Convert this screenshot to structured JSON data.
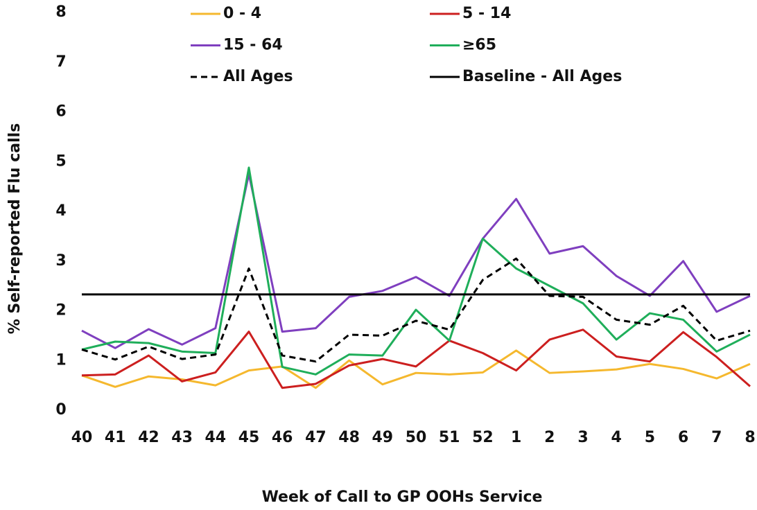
{
  "chart_data": {
    "type": "line",
    "x_label": "Week of Call to GP OOHs Service",
    "y_label": "% Self-reported Flu calls",
    "categories": [
      "40",
      "41",
      "42",
      "43",
      "44",
      "45",
      "46",
      "47",
      "48",
      "49",
      "50",
      "51",
      "52",
      "1",
      "2",
      "3",
      "4",
      "5",
      "6",
      "7",
      "8"
    ],
    "ylim": [
      0,
      8
    ],
    "yticks": [
      0,
      1,
      2,
      3,
      4,
      5,
      6,
      7,
      8
    ],
    "legend": "top",
    "series": [
      {
        "name": "0 - 4",
        "color": "#f5b82e",
        "dash": false,
        "values": [
          0.7,
          0.47,
          0.68,
          0.62,
          0.5,
          0.8,
          0.88,
          0.45,
          1.0,
          0.52,
          0.75,
          0.72,
          0.76,
          1.2,
          0.75,
          0.78,
          0.82,
          0.93,
          0.83,
          0.64,
          0.93
        ]
      },
      {
        "name": "5 - 14",
        "color": "#cc1f1f",
        "dash": false,
        "values": [
          0.7,
          0.72,
          1.1,
          0.58,
          0.76,
          1.58,
          0.45,
          0.53,
          0.9,
          1.03,
          0.88,
          1.4,
          1.15,
          0.8,
          1.42,
          1.62,
          1.08,
          0.98,
          1.57,
          1.07,
          0.48
        ]
      },
      {
        "name": "15 - 64",
        "color": "#7f3fbf",
        "dash": false,
        "values": [
          1.6,
          1.25,
          1.63,
          1.32,
          1.65,
          4.75,
          1.58,
          1.65,
          2.28,
          2.4,
          2.68,
          2.3,
          3.45,
          4.25,
          3.15,
          3.3,
          2.7,
          2.3,
          3.0,
          1.98,
          2.3
        ]
      },
      {
        "name": "≥65",
        "color": "#1fae5a",
        "dash": false,
        "values": [
          1.22,
          1.38,
          1.35,
          1.18,
          1.15,
          4.88,
          0.87,
          0.72,
          1.12,
          1.1,
          2.02,
          1.4,
          3.45,
          2.85,
          2.5,
          2.15,
          1.42,
          1.95,
          1.82,
          1.18,
          1.52
        ]
      },
      {
        "name": "All Ages",
        "color": "#000000",
        "dash": true,
        "values": [
          1.22,
          1.02,
          1.28,
          1.03,
          1.12,
          2.85,
          1.1,
          0.98,
          1.52,
          1.5,
          1.8,
          1.62,
          2.62,
          3.05,
          2.3,
          2.28,
          1.82,
          1.72,
          2.1,
          1.4,
          1.6
        ]
      },
      {
        "name": "Baseline - All Ages",
        "color": "#000000",
        "dash": false,
        "values": [
          2.33,
          2.33,
          2.33,
          2.33,
          2.33,
          2.33,
          2.33,
          2.33,
          2.33,
          2.33,
          2.33,
          2.33,
          2.33,
          2.33,
          2.33,
          2.33,
          2.33,
          2.33,
          2.33,
          2.33,
          2.33
        ]
      }
    ]
  }
}
